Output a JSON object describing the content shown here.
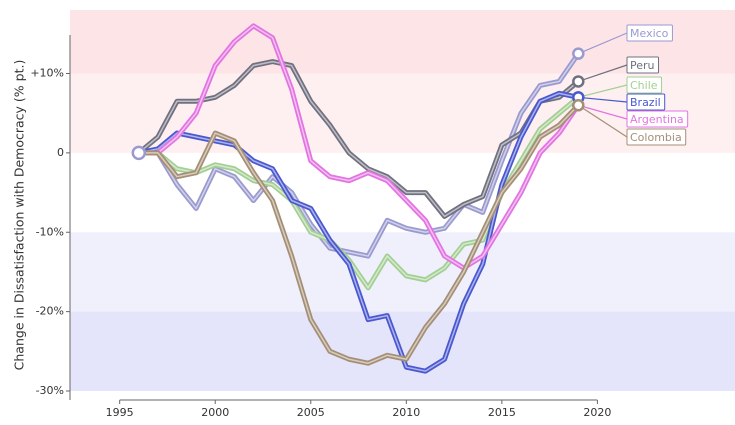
{
  "chart_data": {
    "type": "line",
    "y_label": "Change in Dissatisfaction with Democracy (% pt.)",
    "x": [
      1996,
      1997,
      1998,
      1999,
      2000,
      2001,
      2002,
      2003,
      2004,
      2005,
      2006,
      2007,
      2008,
      2009,
      2010,
      2011,
      2012,
      2013,
      2014,
      2015,
      2016,
      2017,
      2018,
      2019
    ],
    "series": [
      {
        "name": "Mexico",
        "color": "#9a9ad0",
        "values": [
          0,
          0,
          -4,
          -7,
          -2,
          -3,
          -6,
          -3,
          -5,
          -9,
          -12,
          -12.5,
          -13,
          -8.5,
          -9.5,
          -10,
          -9.5,
          -6.5,
          -7.5,
          -1,
          5,
          8.5,
          9,
          12.5
        ]
      },
      {
        "name": "Peru",
        "color": "#707080",
        "values": [
          0,
          2,
          6.5,
          6.5,
          7,
          8.5,
          11,
          11.5,
          11,
          6.5,
          3.5,
          0,
          -2,
          -3,
          -5,
          -5,
          -8,
          -6.5,
          -5.5,
          1,
          2.5,
          6.5,
          7,
          9
        ]
      },
      {
        "name": "Chile",
        "color": "#a3cf93",
        "values": [
          0,
          0,
          -2,
          -2.5,
          -1.5,
          -2,
          -3.5,
          -4,
          -6,
          -10,
          -11,
          -13.5,
          -17,
          -13,
          -15.5,
          -16,
          -14.5,
          -11.5,
          -11,
          -5,
          -1,
          3,
          5,
          7
        ]
      },
      {
        "name": "Brazil",
        "color": "#4a58cf",
        "values": [
          0,
          0.5,
          2.5,
          2,
          1.5,
          1,
          -1,
          -2,
          -6,
          -7,
          -11,
          -14,
          -21,
          -20.5,
          -27,
          -27.5,
          -26,
          -19,
          -14,
          -4,
          2,
          6.5,
          7.5,
          7
        ]
      },
      {
        "name": "Argentina",
        "color": "#e274e2",
        "values": [
          0,
          0,
          2,
          5,
          11,
          14,
          16,
          14.5,
          8,
          -1,
          -3,
          -3.5,
          -2.5,
          -3.5,
          -6,
          -8.5,
          -13,
          -14.5,
          -13,
          -9,
          -5,
          0,
          2.5,
          6
        ]
      },
      {
        "name": "Colombia",
        "color": "#a58f74",
        "values": [
          0,
          0,
          -3,
          -2.5,
          2.5,
          1.5,
          -2.5,
          -6,
          -13,
          -21,
          -25,
          -26,
          -26.5,
          -25.5,
          -26,
          -22,
          -19,
          -15,
          -10,
          -5,
          -2,
          2,
          3.5,
          6
        ]
      }
    ],
    "xlim": [
      1992.4,
      2027.2
    ],
    "ylim": [
      -30,
      18
    ],
    "xticks": [
      1995,
      2000,
      2005,
      2010,
      2015,
      2020
    ],
    "yticks": [
      {
        "value": -30,
        "label": "-30%"
      },
      {
        "value": -20,
        "label": "-20%"
      },
      {
        "value": -10,
        "label": "-10%"
      },
      0,
      {
        "value": 10,
        "label": "+10%"
      }
    ],
    "bands": [
      {
        "from": 10,
        "to": 18,
        "color": "#fde4e6"
      },
      {
        "from": 0,
        "to": 10,
        "color": "#fef0f1"
      },
      {
        "from": -20,
        "to": -10,
        "color": "#f0f0fd"
      },
      {
        "from": -30,
        "to": -20,
        "color": "#e4e5fb"
      }
    ]
  }
}
